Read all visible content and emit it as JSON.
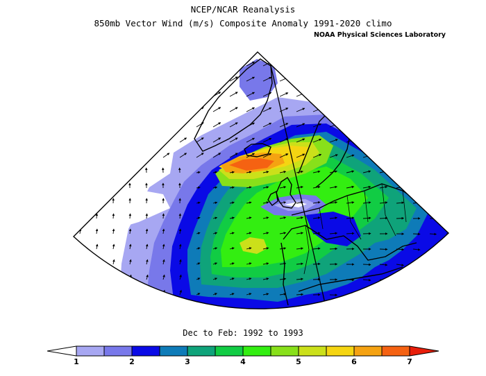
{
  "header": {
    "title": "NCEP/NCAR Reanalysis",
    "subtitle": "850mb Vector Wind (m/s) Composite Anomaly 1991-2020 climo",
    "credit": "NOAA Physical Sciences Laboratory"
  },
  "period": "Dec to Feb: 1992 to 1993",
  "colorbar": {
    "colors": [
      "#ffffff",
      "#a7a7f2",
      "#7878ea",
      "#0a0ae6",
      "#0e7bb8",
      "#0fa37a",
      "#11cc44",
      "#33ee11",
      "#88e01a",
      "#cbe01a",
      "#f5d512",
      "#f5a212",
      "#f56212",
      "#e81e0a"
    ],
    "tick_labels": [
      "1",
      "2",
      "3",
      "4",
      "5",
      "6",
      "7"
    ],
    "range": [
      1,
      7
    ],
    "step": 0.5
  },
  "map": {
    "projection": "conic sector",
    "contour_levels": [
      {
        "value": 1,
        "color": "#a7a7f2"
      },
      {
        "value": 1.5,
        "color": "#7878ea"
      },
      {
        "value": 2,
        "color": "#0a0ae6"
      },
      {
        "value": 2.5,
        "color": "#0e7bb8"
      },
      {
        "value": 3,
        "color": "#0fa37a"
      },
      {
        "value": 3.5,
        "color": "#11cc44"
      },
      {
        "value": 4,
        "color": "#33ee11"
      },
      {
        "value": 4.5,
        "color": "#88e01a"
      },
      {
        "value": 5,
        "color": "#cbe01a"
      },
      {
        "value": 5.5,
        "color": "#f5d512"
      },
      {
        "value": 6,
        "color": "#f5a212"
      },
      {
        "value": 6.5,
        "color": "#f56212"
      }
    ]
  }
}
